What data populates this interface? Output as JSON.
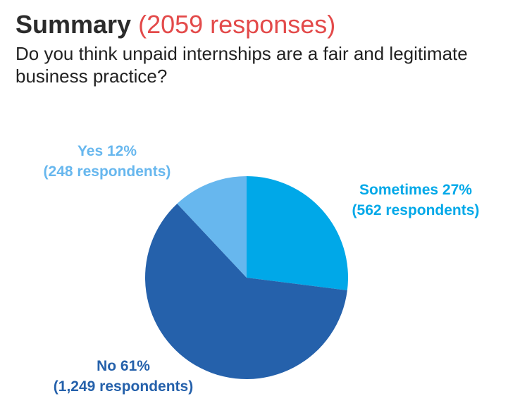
{
  "header": {
    "title": "Summary",
    "response_count": "(2059 responses)",
    "question": "Do you think unpaid internships are a fair and legitimate business practice?"
  },
  "colors": {
    "title_count": "#e34a4a",
    "yes": "#67b7ee",
    "sometimes": "#00a8e8",
    "no": "#2561ab"
  },
  "chart_data": {
    "type": "pie",
    "title": "Summary (2059 responses)",
    "slices": [
      {
        "key": "sometimes",
        "percent": 27,
        "respondents": 562,
        "label_line1": "Sometimes 27%",
        "label_line2": "(562 respondents)"
      },
      {
        "key": "no",
        "percent": 61,
        "respondents": 1249,
        "label_line1": "No 61%",
        "label_line2": "(1,249 respondents)"
      },
      {
        "key": "yes",
        "percent": 12,
        "respondents": 248,
        "label_line1": "Yes 12%",
        "label_line2": "(248 respondents)"
      }
    ]
  }
}
